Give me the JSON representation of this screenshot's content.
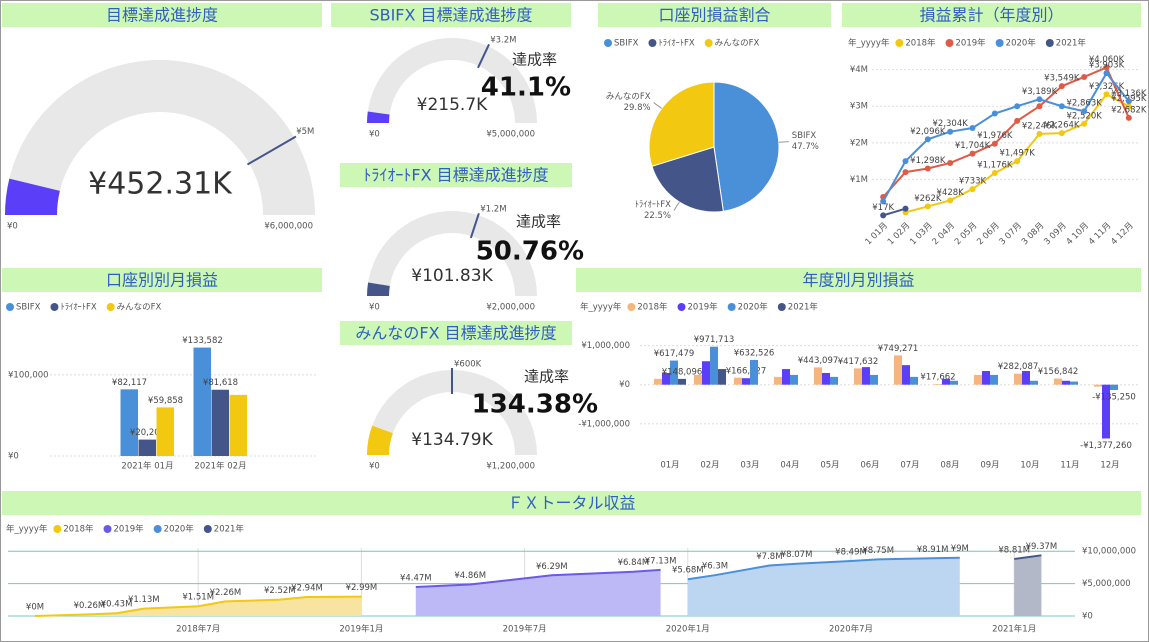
{
  "chart_data": [
    {
      "type": "gauge",
      "title": "目標達成進捗度",
      "value": 452310,
      "value_label": "¥452.31K",
      "min": 0,
      "min_label": "¥0",
      "max": 6000000,
      "max_label": "¥6,000,000",
      "target": 5000000,
      "target_label": "¥5M",
      "color": "#5b3ff8"
    },
    {
      "type": "gauge",
      "title": "SBIFX 目標達成進捗度",
      "value": 215700,
      "value_label": "¥215.7K",
      "min": 0,
      "min_label": "¥0",
      "max": 5000000,
      "max_label": "¥5,000,000",
      "target": 3200000,
      "target_label": "¥3.2M",
      "rate_title": "達成率",
      "rate": 41.1,
      "rate_label": "41.1%",
      "color": "#5b3ff8"
    },
    {
      "type": "gauge",
      "title": "ﾄﾗｲｵｰﾄFX 目標達成進捗度",
      "value": 101830,
      "value_label": "¥101.83K",
      "min": 0,
      "min_label": "¥0",
      "max": 2000000,
      "max_label": "¥2,000,000",
      "target": 1200000,
      "target_label": "¥1.2M",
      "rate_title": "達成率",
      "rate": 50.76,
      "rate_label": "50.76%",
      "color": "#44558a"
    },
    {
      "type": "gauge",
      "title": "みんなのFX 目標達成進捗度",
      "value": 134790,
      "value_label": "¥134.79K",
      "min": 0,
      "min_label": "¥0",
      "max": 1200000,
      "max_label": "¥1,200,000",
      "target": 600000,
      "target_label": "¥600K",
      "rate_title": "達成率",
      "rate": 134.38,
      "rate_label": "134.38%",
      "color": "#f2c811"
    },
    {
      "type": "pie",
      "title": "口座別損益割合",
      "categories": [
        "SBIFX",
        "ﾄﾗｲｵｰﾄFX",
        "みんなのFX"
      ],
      "values": [
        47.7,
        22.5,
        29.8
      ],
      "value_labels": [
        "47.7%",
        "22.5%",
        "29.8%"
      ],
      "colors": [
        "#4a90d9",
        "#44558a",
        "#f2c811"
      ]
    },
    {
      "type": "line",
      "title": "損益累計（年度別）",
      "legend_title": "年_yyyy年",
      "categories": [
        "1 01月",
        "1 02月",
        "1 03月",
        "2 04月",
        "2 05月",
        "2 06月",
        "3 07月",
        "3 08月",
        "3 09月",
        "4 10月",
        "4 11月",
        "4 12月"
      ],
      "ylim": [
        0,
        4400000
      ],
      "yticks": [
        {
          "value": 1000000,
          "label": "¥1M"
        },
        {
          "value": 2000000,
          "label": "¥2M"
        },
        {
          "value": 3000000,
          "label": "¥3M"
        },
        {
          "value": 4000000,
          "label": "¥4M"
        }
      ],
      "grid": true,
      "series": [
        {
          "name": "2018年",
          "color": "#f2c811",
          "values": [
            null,
            100000,
            262000,
            428000,
            733000,
            1176000,
            1497000,
            2246000,
            2264000,
            2520000,
            3326000,
            2995000
          ],
          "value_labels": [
            null,
            null,
            "¥262K",
            "¥428K",
            "¥733K",
            "¥1,176K",
            "¥1,497K",
            "¥2,246K",
            "¥2,264K",
            "¥2,520K",
            "¥3,326K",
            "¥2,995K"
          ]
        },
        {
          "name": "2019年",
          "color": "#e05a47",
          "values": [
            520000,
            1200000,
            1298000,
            1450000,
            1704000,
            1976000,
            2600000,
            3000000,
            3549000,
            3800000,
            4060000,
            2682000
          ],
          "value_labels": [
            null,
            null,
            "¥1,298K",
            null,
            "¥1,704K",
            "¥1,976K",
            null,
            null,
            "¥3,549K",
            null,
            "¥4,060K",
            "¥2,682K"
          ]
        },
        {
          "name": "2020年",
          "color": "#4a90d9",
          "values": [
            400000,
            1500000,
            2096000,
            2304000,
            2404000,
            2800000,
            3000000,
            3189000,
            3000000,
            2863000,
            3903000,
            3136000
          ],
          "value_labels": [
            null,
            null,
            "¥2,096K",
            "¥2,304K",
            null,
            null,
            null,
            "¥3,189K",
            null,
            "¥2,863K",
            "¥3,903K",
            "¥3,136K"
          ]
        },
        {
          "name": "2021年",
          "color": "#44558a",
          "values": [
            17000,
            200000,
            null,
            null,
            null,
            null,
            null,
            null,
            null,
            null,
            null,
            null
          ],
          "value_labels": [
            "¥17K",
            null,
            null,
            null,
            null,
            null,
            null,
            null,
            null,
            null,
            null,
            null
          ]
        }
      ]
    },
    {
      "type": "bar",
      "title": "口座別別月損益",
      "categories": [
        "2021年 01月",
        "2021年 02月"
      ],
      "ylim": [
        0,
        170000
      ],
      "yticks": [
        {
          "value": 0,
          "label": "¥0"
        },
        {
          "value": 100000,
          "label": "¥100,000"
        }
      ],
      "grid": true,
      "series": [
        {
          "name": "SBIFX",
          "color": "#4a90d9",
          "values": [
            82117,
            133582
          ],
          "value_labels": [
            "¥82,117",
            "¥133,582"
          ]
        },
        {
          "name": "ﾄﾗｲｵｰﾄFX",
          "color": "#44558a",
          "values": [
            20207,
            81618
          ],
          "value_labels": [
            "¥20,207",
            "¥81,618"
          ]
        },
        {
          "name": "みんなのFX",
          "color": "#f2c811",
          "values": [
            59858,
            75300
          ],
          "value_labels": [
            "¥59,858",
            null
          ]
        }
      ]
    },
    {
      "type": "bar",
      "title": "年度別月別損益",
      "legend_title": "年_yyyy年",
      "categories": [
        "01月",
        "02月",
        "03月",
        "04月",
        "05月",
        "06月",
        "07月",
        "08月",
        "09月",
        "10月",
        "11月",
        "12月"
      ],
      "ylim": [
        -1800000,
        1400000
      ],
      "yticks": [
        {
          "value": -1000000,
          "label": "-¥1,000,000"
        },
        {
          "value": 0,
          "label": "¥0"
        },
        {
          "value": 1000000,
          "label": "¥1,000,000"
        }
      ],
      "grid": true,
      "series": [
        {
          "name": "2018年",
          "color": "#f5b57c",
          "values": [
            150000,
            250000,
            180000,
            200000,
            443097,
            417632,
            749271,
            17662,
            250000,
            282087,
            156842,
            -50000
          ],
          "value_labels": [
            null,
            null,
            null,
            null,
            "¥443,097",
            "¥417,632",
            "¥749,271",
            "¥17,662",
            null,
            "¥282,087",
            "¥156,842",
            null
          ]
        },
        {
          "name": "2019年",
          "color": "#5b3ff8",
          "values": [
            300000,
            600000,
            166227,
            400000,
            300000,
            450000,
            500000,
            150000,
            350000,
            350000,
            100000,
            -1377260
          ],
          "value_labels": [
            null,
            null,
            "¥166,227",
            null,
            null,
            null,
            null,
            null,
            null,
            null,
            null,
            "-¥1,377,260"
          ]
        },
        {
          "name": "2020年",
          "color": "#4a90d9",
          "values": [
            617479,
            971713,
            632526,
            250000,
            200000,
            250000,
            200000,
            100000,
            250000,
            100000,
            80000,
            -135250
          ],
          "value_labels": [
            "¥617,479",
            "¥971,713",
            "¥632,526",
            null,
            null,
            null,
            null,
            null,
            null,
            null,
            null,
            "-¥135,250"
          ]
        },
        {
          "name": "2021年",
          "color": "#44558a",
          "values": [
            148096,
            400000,
            null,
            null,
            null,
            null,
            null,
            null,
            null,
            null,
            null,
            null
          ],
          "value_labels": [
            "¥148,096",
            null,
            null,
            null,
            null,
            null,
            null,
            null,
            null,
            null,
            null,
            null
          ]
        }
      ]
    },
    {
      "type": "area",
      "title": "ＦＸトータル収益",
      "legend_title": "年_yyyy年",
      "x": [
        "2018-01",
        "2018-03",
        "2018-04",
        "2018-05",
        "2018-07",
        "2018-08",
        "2018-10",
        "2018-11",
        "2019-01",
        "2019-03",
        "2019-05",
        "2019-08",
        "2019-11",
        "2019-12",
        "2020-01",
        "2020-02",
        "2020-04",
        "2020-05",
        "2020-07",
        "2020-08",
        "2020-10",
        "2020-11",
        "2021-01",
        "2021-02"
      ],
      "xticks": [
        {
          "value": "2018-07",
          "label": "2018年7月"
        },
        {
          "value": "2019-01",
          "label": "2019年1月"
        },
        {
          "value": "2019-07",
          "label": "2019年7月"
        },
        {
          "value": "2020-01",
          "label": "2020年1月"
        },
        {
          "value": "2020-07",
          "label": "2020年7月"
        },
        {
          "value": "2021-01",
          "label": "2021年1月"
        }
      ],
      "ylim": [
        0,
        10500000
      ],
      "yticks": [
        {
          "value": 0,
          "label": "¥0"
        },
        {
          "value": 5000000,
          "label": "¥5,000,000"
        },
        {
          "value": 10000000,
          "label": "¥10,000,000"
        }
      ],
      "grid": true,
      "series": [
        {
          "name": "2018年",
          "color": "#f2c811",
          "fill": "#f8e4a0",
          "values": [
            0,
            260000,
            430000,
            1130000,
            1510000,
            2260000,
            2520000,
            2940000,
            2990000,
            null,
            null,
            null,
            null,
            null,
            null,
            null,
            null,
            null,
            null,
            null,
            null,
            null,
            null,
            null
          ],
          "value_labels": [
            "¥0M",
            "¥0.26M",
            "¥0.43M",
            "¥1.13M",
            "¥1.51M",
            "¥2.26M",
            "¥2.52M",
            "¥2.94M",
            "¥2.99M",
            null,
            null,
            null,
            null,
            null,
            null,
            null,
            null,
            null,
            null,
            null,
            null,
            null,
            null,
            null
          ]
        },
        {
          "name": "2019年",
          "color": "#6a5ae8",
          "fill": "#bdb8f6",
          "values": [
            null,
            null,
            null,
            null,
            null,
            null,
            null,
            null,
            null,
            4470000,
            4860000,
            6290000,
            6840000,
            7130000,
            null,
            null,
            null,
            null,
            null,
            null,
            null,
            null,
            null,
            null
          ],
          "value_labels": [
            null,
            null,
            null,
            null,
            null,
            null,
            null,
            null,
            null,
            "¥4.47M",
            "¥4.86M",
            "¥6.29M",
            "¥6.84M",
            "¥7.13M",
            null,
            null,
            null,
            null,
            null,
            null,
            null,
            null,
            null,
            null
          ]
        },
        {
          "name": "2020年",
          "color": "#4a90d9",
          "fill": "#bcd6f1",
          "values": [
            null,
            null,
            null,
            null,
            null,
            null,
            null,
            null,
            null,
            null,
            null,
            null,
            null,
            null,
            5680000,
            6300000,
            7800000,
            8070000,
            8490000,
            8750000,
            8910000,
            9000000,
            null,
            null
          ],
          "value_labels": [
            null,
            null,
            null,
            null,
            null,
            null,
            null,
            null,
            null,
            null,
            null,
            null,
            null,
            null,
            "¥5.68M",
            "¥6.3M",
            "¥7.8M",
            "¥8.07M",
            "¥8.49M",
            "¥8.75M",
            "¥8.91M",
            "¥9M",
            null,
            null
          ]
        },
        {
          "name": "2021年",
          "color": "#44558a",
          "fill": "#b3b8c8",
          "values": [
            null,
            null,
            null,
            null,
            null,
            null,
            null,
            null,
            null,
            null,
            null,
            null,
            null,
            null,
            null,
            null,
            null,
            null,
            null,
            null,
            null,
            null,
            8810000,
            9370000
          ],
          "value_labels": [
            null,
            null,
            null,
            null,
            null,
            null,
            null,
            null,
            null,
            null,
            null,
            null,
            null,
            null,
            null,
            null,
            null,
            null,
            null,
            null,
            null,
            null,
            "¥8.81M",
            "¥9.37M"
          ]
        }
      ]
    }
  ]
}
